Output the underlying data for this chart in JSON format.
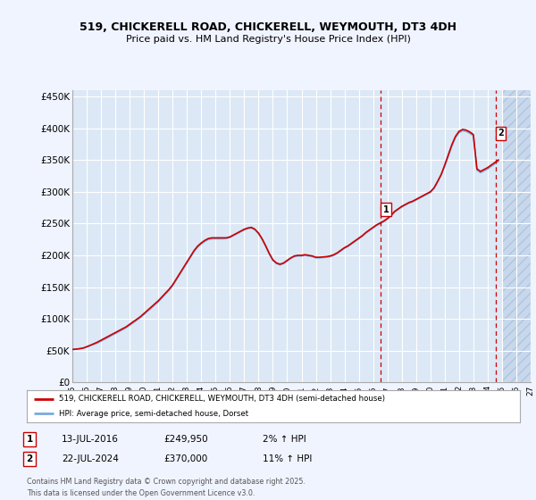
{
  "title_line1": "519, CHICKERELL ROAD, CHICKERELL, WEYMOUTH, DT3 4DH",
  "title_line2": "Price paid vs. HM Land Registry's House Price Index (HPI)",
  "background_color": "#f0f4ff",
  "plot_bg_color": "#dce8f5",
  "grid_color": "#ffffff",
  "ylim": [
    0,
    460000
  ],
  "yticks": [
    0,
    50000,
    100000,
    150000,
    200000,
    250000,
    300000,
    350000,
    400000,
    450000
  ],
  "ytick_labels": [
    "£0",
    "£50K",
    "£100K",
    "£150K",
    "£200K",
    "£250K",
    "£300K",
    "£350K",
    "£400K",
    "£450K"
  ],
  "xmin_year": 1995,
  "xmax_year": 2027,
  "xticks": [
    1995,
    1996,
    1997,
    1998,
    1999,
    2000,
    2001,
    2002,
    2003,
    2004,
    2005,
    2006,
    2007,
    2008,
    2009,
    2010,
    2011,
    2012,
    2013,
    2014,
    2015,
    2016,
    2017,
    2018,
    2019,
    2020,
    2021,
    2022,
    2023,
    2024,
    2025,
    2026,
    2027
  ],
  "sale1_x": 2016.53,
  "sale1_y": 249950,
  "sale1_label": "1",
  "sale2_x": 2024.55,
  "sale2_y": 370000,
  "sale2_label": "2",
  "legend_line1": "519, CHICKERELL ROAD, CHICKERELL, WEYMOUTH, DT3 4DH (semi-detached house)",
  "legend_line2": "HPI: Average price, semi-detached house, Dorset",
  "footer": "Contains HM Land Registry data © Crown copyright and database right 2025.\nThis data is licensed under the Open Government Licence v3.0.",
  "red_line_color": "#cc0000",
  "blue_line_color": "#7aaadd",
  "hpi_years": [
    1995.0,
    1995.25,
    1995.5,
    1995.75,
    1996.0,
    1996.25,
    1996.5,
    1996.75,
    1997.0,
    1997.25,
    1997.5,
    1997.75,
    1998.0,
    1998.25,
    1998.5,
    1998.75,
    1999.0,
    1999.25,
    1999.5,
    1999.75,
    2000.0,
    2000.25,
    2000.5,
    2000.75,
    2001.0,
    2001.25,
    2001.5,
    2001.75,
    2002.0,
    2002.25,
    2002.5,
    2002.75,
    2003.0,
    2003.25,
    2003.5,
    2003.75,
    2004.0,
    2004.25,
    2004.5,
    2004.75,
    2005.0,
    2005.25,
    2005.5,
    2005.75,
    2006.0,
    2006.25,
    2006.5,
    2006.75,
    2007.0,
    2007.25,
    2007.5,
    2007.75,
    2008.0,
    2008.25,
    2008.5,
    2008.75,
    2009.0,
    2009.25,
    2009.5,
    2009.75,
    2010.0,
    2010.25,
    2010.5,
    2010.75,
    2011.0,
    2011.25,
    2011.5,
    2011.75,
    2012.0,
    2012.25,
    2012.5,
    2012.75,
    2013.0,
    2013.25,
    2013.5,
    2013.75,
    2014.0,
    2014.25,
    2014.5,
    2014.75,
    2015.0,
    2015.25,
    2015.5,
    2015.75,
    2016.0,
    2016.25,
    2016.5,
    2016.75,
    2017.0,
    2017.25,
    2017.5,
    2017.75,
    2018.0,
    2018.25,
    2018.5,
    2018.75,
    2019.0,
    2019.25,
    2019.5,
    2019.75,
    2020.0,
    2020.25,
    2020.5,
    2020.75,
    2021.0,
    2021.25,
    2021.5,
    2021.75,
    2022.0,
    2022.25,
    2022.5,
    2022.75,
    2023.0,
    2023.25,
    2023.5,
    2023.75,
    2024.0,
    2024.25,
    2024.5,
    2024.75
  ],
  "hpi_values": [
    52000,
    52500,
    53000,
    54000,
    56000,
    58000,
    60000,
    62000,
    65000,
    68000,
    71000,
    74000,
    77000,
    80000,
    83000,
    86000,
    90000,
    94000,
    98000,
    102000,
    107000,
    112000,
    117000,
    122000,
    127000,
    133000,
    139000,
    145000,
    152000,
    161000,
    170000,
    179000,
    188000,
    197000,
    206000,
    213000,
    218000,
    222000,
    225000,
    226000,
    226000,
    226000,
    226000,
    226500,
    228000,
    231000,
    234000,
    237000,
    240000,
    242000,
    243000,
    240000,
    234000,
    225000,
    214000,
    202000,
    192000,
    187000,
    185000,
    187000,
    191000,
    195000,
    198000,
    199000,
    199000,
    200000,
    199000,
    198000,
    196000,
    196000,
    196500,
    197000,
    198000,
    200000,
    203000,
    207000,
    211000,
    214000,
    218000,
    222000,
    226000,
    230000,
    235000,
    239000,
    243000,
    247000,
    250000,
    253000,
    257000,
    262000,
    268000,
    272000,
    276000,
    279000,
    282000,
    284000,
    287000,
    290000,
    293000,
    296000,
    299000,
    305000,
    315000,
    326000,
    340000,
    356000,
    372000,
    385000,
    393000,
    396000,
    395000,
    392000,
    388000,
    334000,
    330000,
    333000,
    336000,
    340000,
    344000,
    348000
  ],
  "red_years": [
    1995.0,
    1995.25,
    1995.5,
    1995.75,
    1996.0,
    1996.25,
    1996.5,
    1996.75,
    1997.0,
    1997.25,
    1997.5,
    1997.75,
    1998.0,
    1998.25,
    1998.5,
    1998.75,
    1999.0,
    1999.25,
    1999.5,
    1999.75,
    2000.0,
    2000.25,
    2000.5,
    2000.75,
    2001.0,
    2001.25,
    2001.5,
    2001.75,
    2002.0,
    2002.25,
    2002.5,
    2002.75,
    2003.0,
    2003.25,
    2003.5,
    2003.75,
    2004.0,
    2004.25,
    2004.5,
    2004.75,
    2005.0,
    2005.25,
    2005.5,
    2005.75,
    2006.0,
    2006.25,
    2006.5,
    2006.75,
    2007.0,
    2007.25,
    2007.5,
    2007.75,
    2008.0,
    2008.25,
    2008.5,
    2008.75,
    2009.0,
    2009.25,
    2009.5,
    2009.75,
    2010.0,
    2010.25,
    2010.5,
    2010.75,
    2011.0,
    2011.25,
    2011.5,
    2011.75,
    2012.0,
    2012.25,
    2012.5,
    2012.75,
    2013.0,
    2013.25,
    2013.5,
    2013.75,
    2014.0,
    2014.25,
    2014.5,
    2014.75,
    2015.0,
    2015.25,
    2015.5,
    2015.75,
    2016.0,
    2016.25,
    2016.5,
    2016.75,
    2017.0,
    2017.25,
    2017.5,
    2017.75,
    2018.0,
    2018.25,
    2018.5,
    2018.75,
    2019.0,
    2019.25,
    2019.5,
    2019.75,
    2020.0,
    2020.25,
    2020.5,
    2020.75,
    2021.0,
    2021.25,
    2021.5,
    2021.75,
    2022.0,
    2022.25,
    2022.5,
    2022.75,
    2023.0,
    2023.25,
    2023.5,
    2023.75,
    2024.0,
    2024.25,
    2024.5,
    2024.75
  ],
  "red_values": [
    52000,
    52500,
    53200,
    54100,
    56200,
    58500,
    61000,
    63500,
    66500,
    69500,
    72500,
    75500,
    78500,
    81500,
    84500,
    87500,
    91500,
    95500,
    99500,
    103500,
    108500,
    113500,
    118500,
    123500,
    128500,
    134500,
    140500,
    146500,
    153500,
    162500,
    171500,
    180500,
    189500,
    198500,
    207500,
    214500,
    219500,
    223500,
    226500,
    227500,
    227500,
    227500,
    227500,
    227500,
    229000,
    232000,
    235000,
    238000,
    241000,
    243000,
    244000,
    241000,
    235000,
    226000,
    215000,
    203000,
    193000,
    188000,
    186000,
    188000,
    192000,
    196000,
    199000,
    200000,
    200000,
    201000,
    200000,
    199000,
    197000,
    197000,
    197500,
    198000,
    199000,
    201000,
    204000,
    208000,
    212000,
    215000,
    219000,
    223000,
    227000,
    231000,
    236000,
    240000,
    244000,
    248000,
    251000,
    254000,
    258000,
    263000,
    269000,
    273000,
    277000,
    280000,
    283000,
    285000,
    288000,
    291000,
    294000,
    297000,
    300000,
    306000,
    316000,
    327000,
    342000,
    358000,
    374000,
    387000,
    395000,
    398000,
    397000,
    394000,
    390000,
    336000,
    332000,
    335000,
    338000,
    342000,
    346000,
    350000
  ]
}
